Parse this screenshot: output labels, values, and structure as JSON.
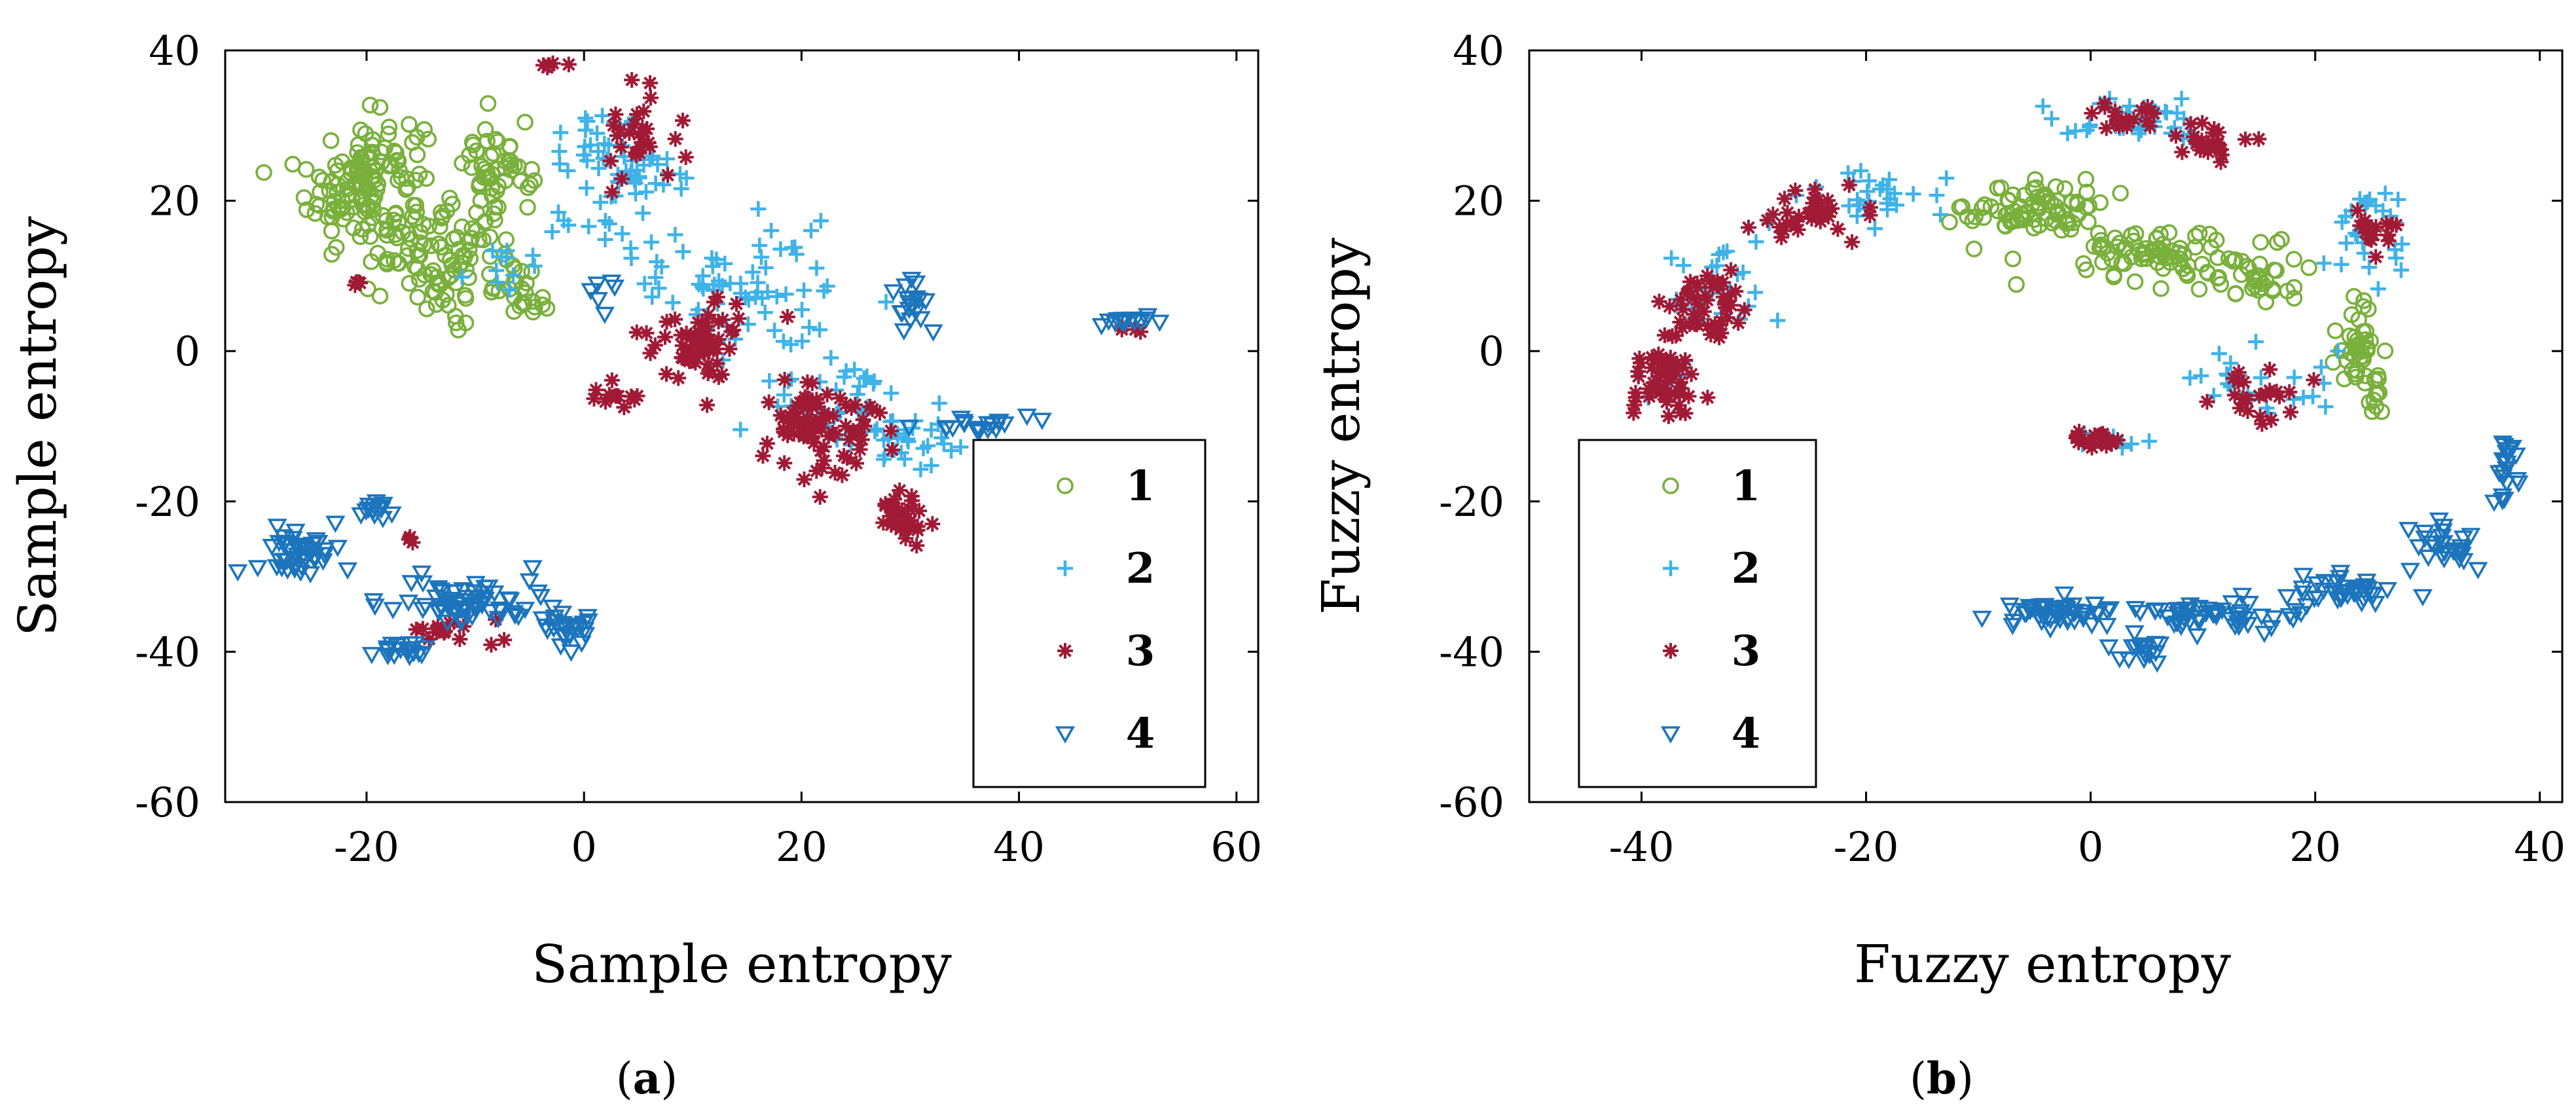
{
  "chart_data": [
    {
      "type": "scatter",
      "panel_label": "a",
      "xlabel": "Sample entropy",
      "ylabel": "Sample entropy",
      "xlim": [
        -33,
        62
      ],
      "ylim": [
        -60,
        40
      ],
      "xticks": [
        -20,
        0,
        20,
        40,
        60
      ],
      "yticks": [
        40,
        20,
        0,
        -20,
        -40,
        -60
      ],
      "legend_position": "bottom-right",
      "series": [
        {
          "name": "1",
          "marker": "circle",
          "color": "#79B03C",
          "clusters": [
            {
              "center": [
                -20,
                22
              ],
              "spread": [
                4.5,
                8
              ],
              "count": 150
            },
            {
              "center": [
                -12,
                12
              ],
              "spread": [
                5,
                6
              ],
              "count": 90
            },
            {
              "center": [
                -8,
                24
              ],
              "spread": [
                2.5,
                5
              ],
              "count": 50
            },
            {
              "center": [
                -5,
                8
              ],
              "spread": [
                2,
                3
              ],
              "count": 20
            }
          ]
        },
        {
          "name": "2",
          "marker": "plus",
          "color": "#3FB3E8",
          "clusters": [
            {
              "center": [
                3,
                22
              ],
              "spread": [
                5,
                8
              ],
              "count": 70
            },
            {
              "center": [
                14,
                8
              ],
              "spread": [
                7,
                7
              ],
              "count": 70
            },
            {
              "center": [
                23,
                -7
              ],
              "spread": [
                5,
                5
              ],
              "count": 50
            },
            {
              "center": [
                30,
                -12
              ],
              "spread": [
                4,
                3
              ],
              "count": 25
            },
            {
              "center": [
                -8,
                12
              ],
              "spread": [
                2,
                3
              ],
              "count": 10
            }
          ]
        },
        {
          "name": "3",
          "marker": "asterisk",
          "color": "#A11A35",
          "clusters": [
            {
              "center": [
                5,
                28
              ],
              "spread": [
                3,
                5
              ],
              "count": 30
            },
            {
              "center": [
                11,
                2
              ],
              "spread": [
                3.5,
                5
              ],
              "count": 60
            },
            {
              "center": [
                22,
                -10
              ],
              "spread": [
                4.5,
                6
              ],
              "count": 80
            },
            {
              "center": [
                29,
                -22
              ],
              "spread": [
                2,
                2.5
              ],
              "count": 30
            },
            {
              "center": [
                -11,
                -37
              ],
              "spread": [
                4,
                1.5
              ],
              "count": 15
            },
            {
              "center": [
                3,
                -6
              ],
              "spread": [
                2,
                1.5
              ],
              "count": 12
            },
            {
              "center": [
                -3,
                38
              ],
              "spread": [
                1,
                0.5
              ],
              "count": 5
            },
            {
              "center": [
                -21,
                9
              ],
              "spread": [
                0.6,
                1
              ],
              "count": 4
            },
            {
              "center": [
                -16,
                -25
              ],
              "spread": [
                0.5,
                0.5
              ],
              "count": 3
            },
            {
              "center": [
                51,
                3
              ],
              "spread": [
                1,
                0.5
              ],
              "count": 4
            }
          ]
        },
        {
          "name": "4",
          "marker": "triangle-down",
          "color": "#1C75BC",
          "clusters": [
            {
              "center": [
                -26,
                -27
              ],
              "spread": [
                3,
                2.5
              ],
              "count": 50
            },
            {
              "center": [
                -19,
                -21
              ],
              "spread": [
                1.5,
                1
              ],
              "count": 14
            },
            {
              "center": [
                -10,
                -33
              ],
              "spread": [
                6,
                2.5
              ],
              "count": 70
            },
            {
              "center": [
                -1,
                -37
              ],
              "spread": [
                2,
                2
              ],
              "count": 25
            },
            {
              "center": [
                -17,
                -40
              ],
              "spread": [
                2,
                1
              ],
              "count": 18
            },
            {
              "center": [
                30,
                6
              ],
              "spread": [
                1.5,
                3
              ],
              "count": 20
            },
            {
              "center": [
                50,
                4
              ],
              "spread": [
                2,
                0.6
              ],
              "count": 15
            },
            {
              "center": [
                36,
                -10
              ],
              "spread": [
                4,
                1
              ],
              "count": 20
            },
            {
              "center": [
                2,
                8
              ],
              "spread": [
                1,
                3
              ],
              "count": 6
            }
          ]
        }
      ]
    },
    {
      "type": "scatter",
      "panel_label": "b",
      "xlabel": "Fuzzy entropy",
      "ylabel": "Fuzzy entropy",
      "xlim": [
        -50,
        42
      ],
      "ylim": [
        -60,
        40
      ],
      "xticks": [
        -40,
        -20,
        0,
        20,
        40
      ],
      "yticks": [
        40,
        20,
        0,
        -20,
        -40,
        -60
      ],
      "legend_position": "bottom-left",
      "series": [
        {
          "name": "1",
          "marker": "circle",
          "color": "#79B03C",
          "clusters": [
            {
              "center": [
                -5,
                19
              ],
              "spread": [
                5,
                3
              ],
              "count": 80
            },
            {
              "center": [
                5,
                13
              ],
              "spread": [
                6,
                3
              ],
              "count": 70
            },
            {
              "center": [
                14,
                10
              ],
              "spread": [
                4,
                3
              ],
              "count": 40
            },
            {
              "center": [
                24,
                1
              ],
              "spread": [
                1.8,
                5
              ],
              "count": 40
            },
            {
              "center": [
                25,
                -7
              ],
              "spread": [
                1,
                3
              ],
              "count": 10
            }
          ]
        },
        {
          "name": "2",
          "marker": "plus",
          "color": "#3FB3E8",
          "clusters": [
            {
              "center": [
                -34,
                8
              ],
              "spread": [
                4,
                7
              ],
              "count": 30
            },
            {
              "center": [
                -20,
                20
              ],
              "spread": [
                6,
                3
              ],
              "count": 30
            },
            {
              "center": [
                5,
                31
              ],
              "spread": [
                7,
                2.5
              ],
              "count": 40
            },
            {
              "center": [
                25,
                15
              ],
              "spread": [
                3,
                5
              ],
              "count": 30
            },
            {
              "center": [
                14,
                -4
              ],
              "spread": [
                6,
                4
              ],
              "count": 25
            },
            {
              "center": [
                2,
                -12
              ],
              "spread": [
                3,
                1
              ],
              "count": 10
            },
            {
              "center": [
                -38,
                -5
              ],
              "spread": [
                2,
                2
              ],
              "count": 10
            }
          ]
        },
        {
          "name": "3",
          "marker": "asterisk",
          "color": "#A11A35",
          "clusters": [
            {
              "center": [
                -38,
                -4
              ],
              "spread": [
                2.5,
                4
              ],
              "count": 50
            },
            {
              "center": [
                -34,
                6
              ],
              "spread": [
                3,
                5
              ],
              "count": 50
            },
            {
              "center": [
                -25,
                18
              ],
              "spread": [
                4,
                3
              ],
              "count": 35
            },
            {
              "center": [
                3,
                31
              ],
              "spread": [
                3,
                1.5
              ],
              "count": 20
            },
            {
              "center": [
                11,
                28
              ],
              "spread": [
                4,
                2
              ],
              "count": 25
            },
            {
              "center": [
                25,
                15
              ],
              "spread": [
                2,
                2.5
              ],
              "count": 15
            },
            {
              "center": [
                14,
                -6
              ],
              "spread": [
                3.5,
                3
              ],
              "count": 25
            },
            {
              "center": [
                0,
                -12
              ],
              "spread": [
                3,
                0.8
              ],
              "count": 20
            }
          ]
        },
        {
          "name": "4",
          "marker": "triangle-down",
          "color": "#1C75BC",
          "clusters": [
            {
              "center": [
                -2,
                -35
              ],
              "spread": [
                5,
                1.5
              ],
              "count": 50
            },
            {
              "center": [
                11,
                -35
              ],
              "spread": [
                5,
                1.8
              ],
              "count": 50
            },
            {
              "center": [
                23,
                -32
              ],
              "spread": [
                4,
                2
              ],
              "count": 40
            },
            {
              "center": [
                32,
                -25
              ],
              "spread": [
                3,
                2.5
              ],
              "count": 30
            },
            {
              "center": [
                37,
                -16
              ],
              "spread": [
                0.8,
                3
              ],
              "count": 20
            },
            {
              "center": [
                4,
                -40
              ],
              "spread": [
                2.5,
                1.5
              ],
              "count": 20
            }
          ]
        }
      ]
    }
  ]
}
